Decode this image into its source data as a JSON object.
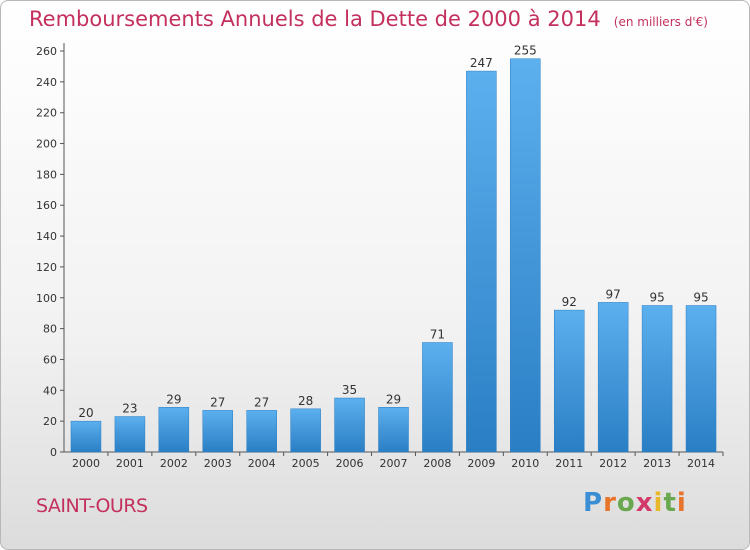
{
  "chart_data": {
    "type": "bar",
    "title": "Remboursements Annuels de la Dette de 2000 à 2014",
    "subtitle": "(en milliers d'€)",
    "categories": [
      "2000",
      "2001",
      "2002",
      "2003",
      "2004",
      "2005",
      "2006",
      "2007",
      "2008",
      "2009",
      "2010",
      "2011",
      "2012",
      "2013",
      "2014"
    ],
    "values": [
      20,
      23,
      29,
      27,
      27,
      28,
      35,
      29,
      71,
      247,
      255,
      92,
      97,
      95,
      95
    ],
    "ylim": [
      0,
      260
    ],
    "yticks": [
      0,
      20,
      40,
      60,
      80,
      100,
      120,
      140,
      160,
      180,
      200,
      220,
      240,
      260
    ],
    "grid": false,
    "bar_color": "#4a9fe0",
    "title_color": "#c4305d"
  },
  "footer": {
    "commune": "SAINT-OURS",
    "logo": "Proxiti"
  }
}
